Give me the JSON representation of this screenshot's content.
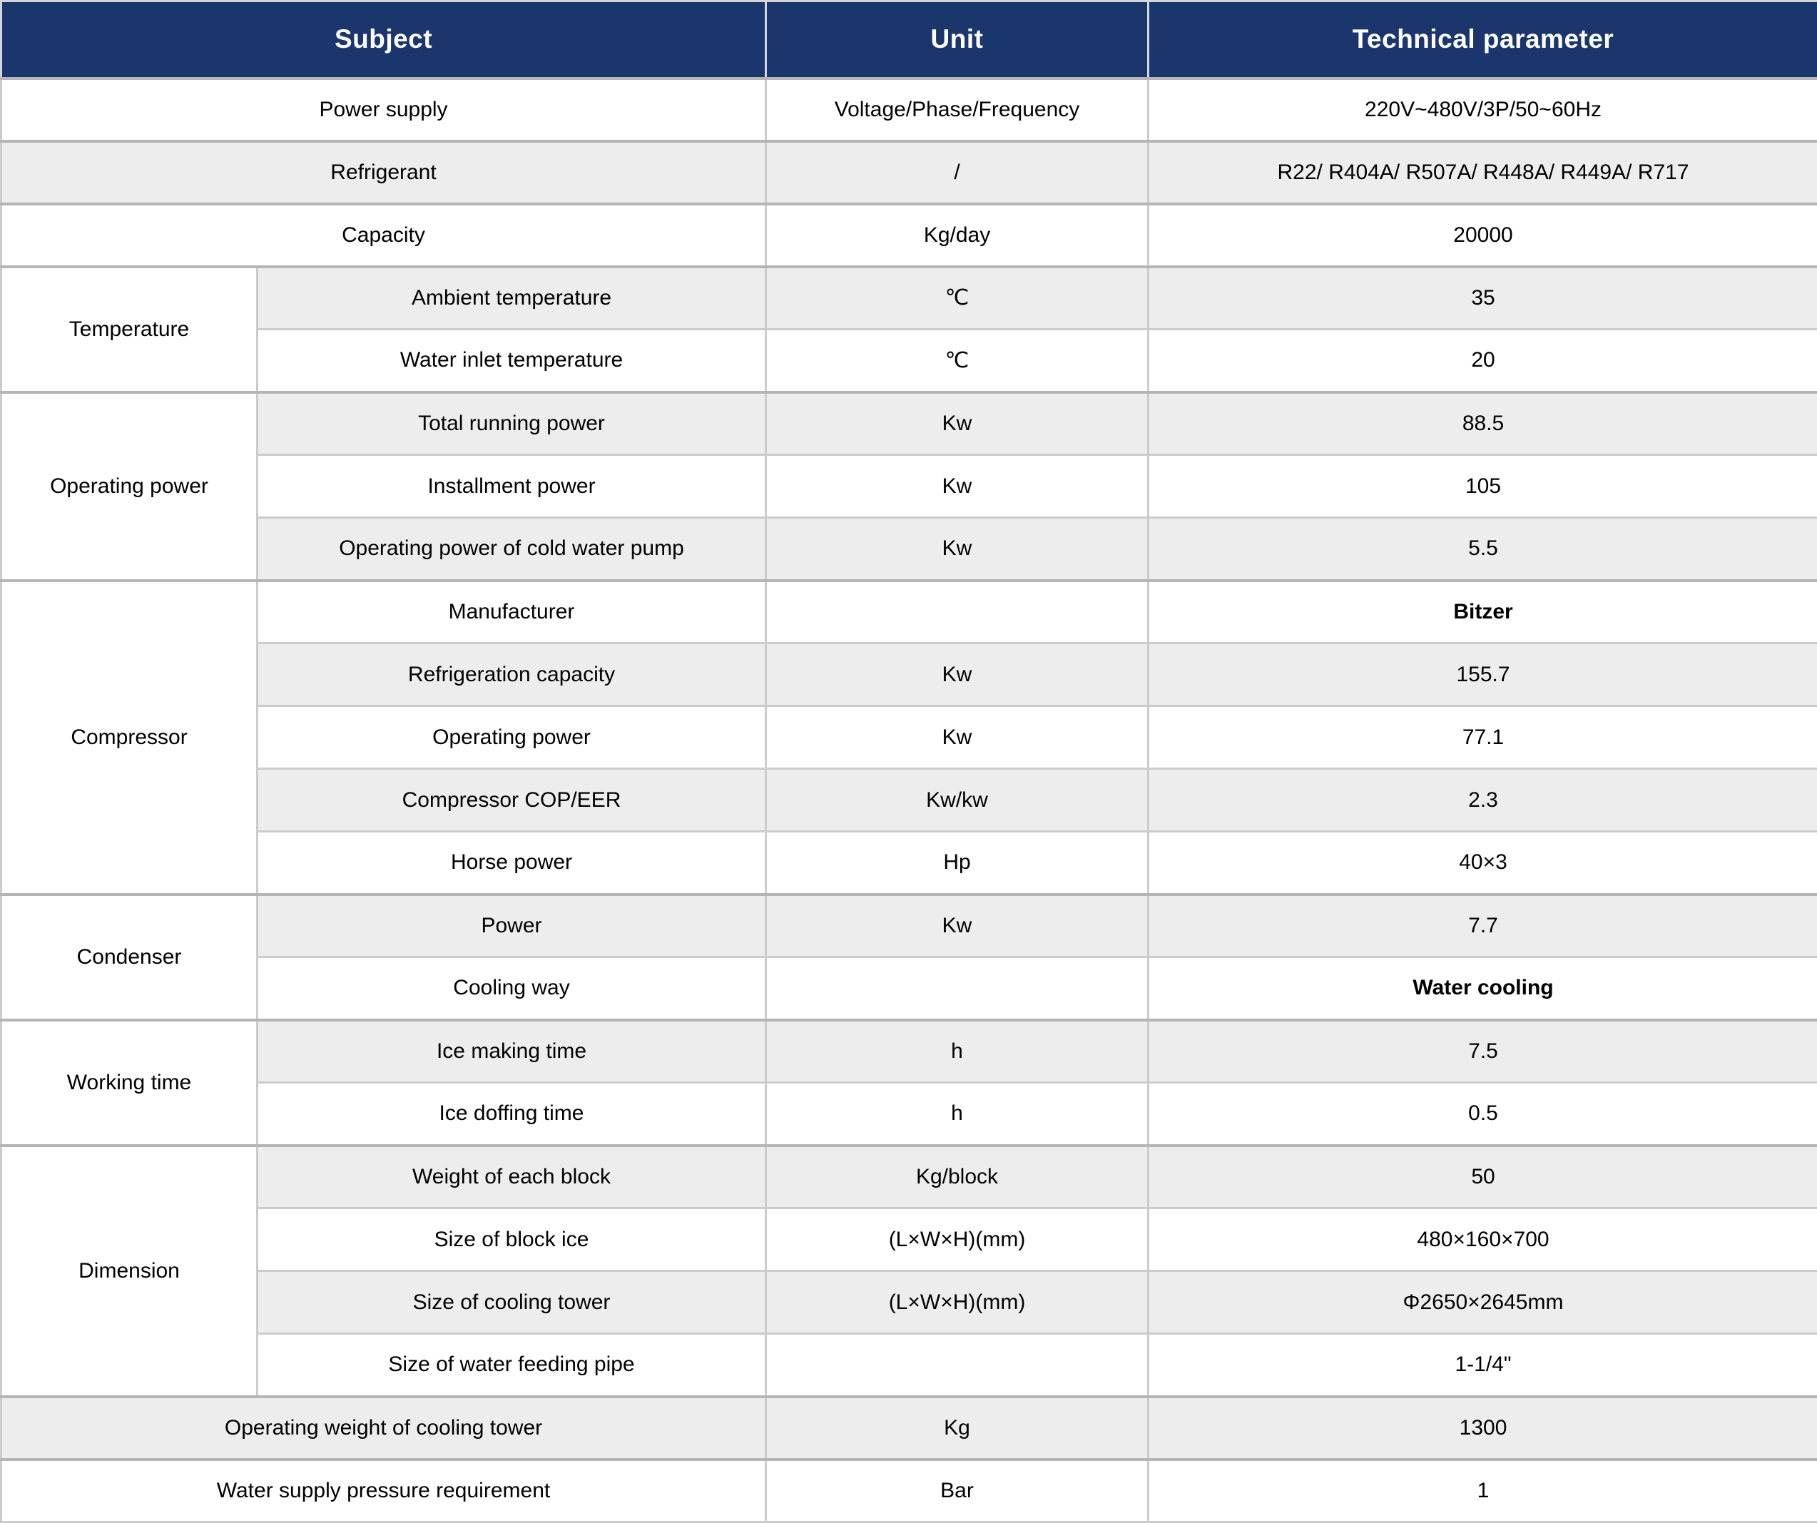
{
  "colors": {
    "header_bg": "#1B356D",
    "header_text": "#FFFFFF",
    "row_bg": "#FFFFFF",
    "row_alt_bg": "#EDEDED",
    "border": "#CCCCCC",
    "body_text": "#000000"
  },
  "table": {
    "columns": [
      {
        "label": "Subject"
      },
      {
        "label": "Unit"
      },
      {
        "label": "Technical parameter"
      }
    ],
    "rows": [
      {
        "group": null,
        "subject": "Power supply",
        "unit": "Voltage/Phase/Frequency",
        "value": "220V~480V/3P/50~60Hz",
        "bold": false
      },
      {
        "group": null,
        "subject": "Refrigerant",
        "unit": "/",
        "value": "R22/ R404A/ R507A/ R448A/ R449A/ R717",
        "bold": false
      },
      {
        "group": null,
        "subject": "Capacity",
        "unit": "Kg/day",
        "value": "20000",
        "bold": false
      },
      {
        "group": "Temperature",
        "subject": "Ambient temperature",
        "unit": "℃",
        "value": "35",
        "bold": false
      },
      {
        "group": "Temperature",
        "subject": "Water inlet temperature",
        "unit": "℃",
        "value": "20",
        "bold": false
      },
      {
        "group": "Operating power",
        "subject": "Total running power",
        "unit": "Kw",
        "value": "88.5",
        "bold": false
      },
      {
        "group": "Operating power",
        "subject": "Installment power",
        "unit": "Kw",
        "value": "105",
        "bold": false
      },
      {
        "group": "Operating power",
        "subject": "Operating power of cold water pump",
        "unit": "Kw",
        "value": "5.5",
        "bold": false
      },
      {
        "group": "Compressor",
        "subject": "Manufacturer",
        "unit": "",
        "value": "Bitzer",
        "bold": true
      },
      {
        "group": "Compressor",
        "subject": "Refrigeration capacity",
        "unit": "Kw",
        "value": "155.7",
        "bold": false
      },
      {
        "group": "Compressor",
        "subject": "Operating power",
        "unit": "Kw",
        "value": "77.1",
        "bold": false
      },
      {
        "group": "Compressor",
        "subject": "Compressor COP/EER",
        "unit": "Kw/kw",
        "value": "2.3",
        "bold": false
      },
      {
        "group": "Compressor",
        "subject": "Horse power",
        "unit": "Hp",
        "value": "40×3",
        "bold": false
      },
      {
        "group": "Condenser",
        "subject": "Power",
        "unit": "Kw",
        "value": "7.7",
        "bold": false
      },
      {
        "group": "Condenser",
        "subject": "Cooling way",
        "unit": "",
        "value": "Water cooling",
        "bold": true
      },
      {
        "group": "Working time",
        "subject": "Ice making time",
        "unit": "h",
        "value": "7.5",
        "bold": false
      },
      {
        "group": "Working time",
        "subject": "Ice doffing time",
        "unit": "h",
        "value": "0.5",
        "bold": false
      },
      {
        "group": "Dimension",
        "subject": "Weight of each block",
        "unit": "Kg/block",
        "value": "50",
        "bold": false
      },
      {
        "group": "Dimension",
        "subject": "Size of block ice",
        "unit": "(L×W×H)(mm)",
        "value": "480×160×700",
        "bold": false
      },
      {
        "group": "Dimension",
        "subject": "Size of cooling tower",
        "unit": "(L×W×H)(mm)",
        "value": "Φ2650×2645mm",
        "bold": false
      },
      {
        "group": "Dimension",
        "subject": "Size of water feeding pipe",
        "unit": "",
        "value": "1-1/4\"",
        "bold": false
      },
      {
        "group": null,
        "subject": "Operating weight of cooling tower",
        "unit": "Kg",
        "value": "1300",
        "bold": false
      },
      {
        "group": null,
        "subject": "Water supply pressure requirement",
        "unit": "Bar",
        "value": "1",
        "bold": false
      }
    ]
  }
}
